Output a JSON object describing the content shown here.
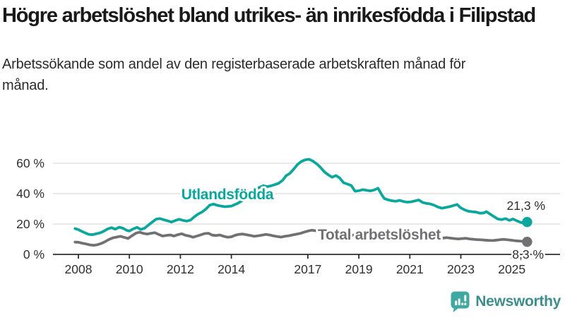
{
  "header": {
    "title": "Högre arbetslöshet bland utrikes- än inrikesfödda i Filipstad",
    "subtitle": "Arbetssökande som andel av den registerbaserade arbetskraften månad för månad."
  },
  "chart_data": {
    "type": "line",
    "title": "Högre arbetslöshet bland utrikes- än inrikesfödda i Filipstad",
    "subtitle": "Arbetssökande som andel av den registerbaserade arbetskraften månad för månad.",
    "x_unit": "year_decimal",
    "xlabel": "",
    "ylabel": "",
    "xlim": [
      2007.8,
      2025.9
    ],
    "ylim": [
      0,
      65
    ],
    "grid": "horizontal",
    "legend_position": "inline-labels-on-lines",
    "yticks": [
      {
        "value": 0,
        "label": "0 %"
      },
      {
        "value": 20,
        "label": "20 %"
      },
      {
        "value": 40,
        "label": "40 %"
      },
      {
        "value": 60,
        "label": "60 %"
      }
    ],
    "xticks": [
      2008,
      2010,
      2012,
      2014,
      2017,
      2019,
      2021,
      2023,
      2025
    ],
    "colors": {
      "teal": "#0ba79c",
      "gray": "#717174",
      "axis": "#2e2e2e",
      "axis_text": "#303030",
      "grid": "#dcdcdc",
      "value_label_text": "#2e2e2e"
    },
    "series": [
      {
        "id": "utlandsfodda",
        "name": "Utlandsfödda",
        "color": "#0ba79c",
        "end_label": "21,3 %",
        "end_value": 21.3,
        "points": [
          [
            2007.87,
            17.0
          ],
          [
            2008.0,
            16.3
          ],
          [
            2008.13,
            15.2
          ],
          [
            2008.25,
            14.3
          ],
          [
            2008.4,
            13.2
          ],
          [
            2008.55,
            13.0
          ],
          [
            2008.7,
            13.6
          ],
          [
            2008.85,
            14.2
          ],
          [
            2009.0,
            15.3
          ],
          [
            2009.15,
            16.8
          ],
          [
            2009.3,
            17.6
          ],
          [
            2009.45,
            16.6
          ],
          [
            2009.6,
            17.9
          ],
          [
            2009.75,
            17.2
          ],
          [
            2009.9,
            15.8
          ],
          [
            2010.0,
            15.4
          ],
          [
            2010.15,
            16.8
          ],
          [
            2010.3,
            17.8
          ],
          [
            2010.45,
            16.4
          ],
          [
            2010.6,
            17.3
          ],
          [
            2010.75,
            19.4
          ],
          [
            2010.9,
            21.3
          ],
          [
            2011.05,
            23.2
          ],
          [
            2011.2,
            23.6
          ],
          [
            2011.35,
            22.8
          ],
          [
            2011.5,
            22.1
          ],
          [
            2011.65,
            21.3
          ],
          [
            2011.8,
            22.3
          ],
          [
            2011.95,
            23.1
          ],
          [
            2012.1,
            22.4
          ],
          [
            2012.25,
            21.9
          ],
          [
            2012.4,
            22.6
          ],
          [
            2012.55,
            24.8
          ],
          [
            2012.7,
            26.6
          ],
          [
            2012.85,
            27.9
          ],
          [
            2013.0,
            29.8
          ],
          [
            2013.15,
            32.4
          ],
          [
            2013.3,
            33.1
          ],
          [
            2013.45,
            32.3
          ],
          [
            2013.6,
            31.8
          ],
          [
            2013.75,
            31.4
          ],
          [
            2014.0,
            31.8
          ],
          [
            2014.25,
            33.6
          ],
          [
            2014.5,
            36.2
          ],
          [
            2014.75,
            39.4
          ],
          [
            2015.0,
            43.2
          ],
          [
            2015.1,
            44.1
          ],
          [
            2015.25,
            45.2
          ],
          [
            2015.4,
            44.6
          ],
          [
            2015.55,
            45.1
          ],
          [
            2015.7,
            45.9
          ],
          [
            2015.85,
            46.8
          ],
          [
            2016.0,
            48.6
          ],
          [
            2016.15,
            51.8
          ],
          [
            2016.3,
            53.4
          ],
          [
            2016.45,
            56.2
          ],
          [
            2016.6,
            59.3
          ],
          [
            2016.75,
            61.2
          ],
          [
            2016.9,
            62.3
          ],
          [
            2017.05,
            62.6
          ],
          [
            2017.2,
            61.4
          ],
          [
            2017.35,
            59.6
          ],
          [
            2017.5,
            57.2
          ],
          [
            2017.65,
            54.3
          ],
          [
            2017.8,
            52.4
          ],
          [
            2017.95,
            50.8
          ],
          [
            2018.1,
            51.9
          ],
          [
            2018.25,
            50.3
          ],
          [
            2018.4,
            47.2
          ],
          [
            2018.55,
            46.3
          ],
          [
            2018.7,
            45.4
          ],
          [
            2018.85,
            41.6
          ],
          [
            2019.0,
            41.9
          ],
          [
            2019.15,
            42.6
          ],
          [
            2019.3,
            42.2
          ],
          [
            2019.45,
            41.8
          ],
          [
            2019.6,
            42.4
          ],
          [
            2019.75,
            43.6
          ],
          [
            2019.9,
            39.2
          ],
          [
            2020.0,
            36.8
          ],
          [
            2020.15,
            35.9
          ],
          [
            2020.3,
            35.3
          ],
          [
            2020.45,
            35.0
          ],
          [
            2020.6,
            35.6
          ],
          [
            2020.75,
            34.8
          ],
          [
            2020.9,
            34.4
          ],
          [
            2021.05,
            34.6
          ],
          [
            2021.2,
            35.2
          ],
          [
            2021.35,
            35.8
          ],
          [
            2021.5,
            34.2
          ],
          [
            2021.65,
            33.6
          ],
          [
            2021.8,
            33.2
          ],
          [
            2021.95,
            32.4
          ],
          [
            2022.1,
            31.2
          ],
          [
            2022.25,
            30.4
          ],
          [
            2022.4,
            30.9
          ],
          [
            2022.55,
            31.4
          ],
          [
            2022.7,
            32.1
          ],
          [
            2022.85,
            32.9
          ],
          [
            2023.0,
            30.6
          ],
          [
            2023.15,
            29.3
          ],
          [
            2023.3,
            28.4
          ],
          [
            2023.45,
            28.1
          ],
          [
            2023.6,
            27.8
          ],
          [
            2023.75,
            27.1
          ],
          [
            2023.9,
            27.3
          ],
          [
            2024.0,
            28.2
          ],
          [
            2024.15,
            26.5
          ],
          [
            2024.3,
            24.9
          ],
          [
            2024.45,
            23.3
          ],
          [
            2024.6,
            22.9
          ],
          [
            2024.75,
            23.6
          ],
          [
            2024.9,
            22.4
          ],
          [
            2025.05,
            23.3
          ],
          [
            2025.2,
            22.1
          ],
          [
            2025.35,
            21.0
          ],
          [
            2025.5,
            20.7
          ],
          [
            2025.6,
            21.3
          ]
        ]
      },
      {
        "id": "total",
        "name": "Total arbetslöshet",
        "color": "#717174",
        "end_label": "8,3 %",
        "end_value": 8.3,
        "points": [
          [
            2007.87,
            8.1
          ],
          [
            2008.0,
            8.0
          ],
          [
            2008.15,
            7.4
          ],
          [
            2008.3,
            6.9
          ],
          [
            2008.45,
            6.3
          ],
          [
            2008.6,
            6.0
          ],
          [
            2008.75,
            6.4
          ],
          [
            2008.9,
            7.2
          ],
          [
            2009.05,
            8.4
          ],
          [
            2009.2,
            9.8
          ],
          [
            2009.35,
            10.9
          ],
          [
            2009.5,
            11.4
          ],
          [
            2009.65,
            11.9
          ],
          [
            2009.8,
            11.2
          ],
          [
            2009.95,
            10.5
          ],
          [
            2010.1,
            12.3
          ],
          [
            2010.25,
            13.9
          ],
          [
            2010.4,
            14.6
          ],
          [
            2010.55,
            13.8
          ],
          [
            2010.7,
            13.4
          ],
          [
            2010.85,
            13.9
          ],
          [
            2011.0,
            14.3
          ],
          [
            2011.15,
            13.1
          ],
          [
            2011.3,
            12.1
          ],
          [
            2011.45,
            12.5
          ],
          [
            2011.6,
            12.8
          ],
          [
            2011.75,
            12.1
          ],
          [
            2011.9,
            13.0
          ],
          [
            2012.05,
            13.6
          ],
          [
            2012.2,
            12.6
          ],
          [
            2012.35,
            12.1
          ],
          [
            2012.5,
            11.3
          ],
          [
            2012.65,
            12.1
          ],
          [
            2012.8,
            12.9
          ],
          [
            2012.95,
            13.7
          ],
          [
            2013.1,
            13.9
          ],
          [
            2013.25,
            12.7
          ],
          [
            2013.4,
            12.4
          ],
          [
            2013.55,
            12.8
          ],
          [
            2013.7,
            11.9
          ],
          [
            2013.85,
            11.3
          ],
          [
            2014.0,
            11.6
          ],
          [
            2014.15,
            12.6
          ],
          [
            2014.3,
            13.2
          ],
          [
            2014.45,
            13.4
          ],
          [
            2014.6,
            12.9
          ],
          [
            2014.75,
            12.4
          ],
          [
            2014.9,
            11.9
          ],
          [
            2015.05,
            12.3
          ],
          [
            2015.2,
            12.7
          ],
          [
            2015.35,
            13.1
          ],
          [
            2015.5,
            12.8
          ],
          [
            2015.65,
            12.2
          ],
          [
            2015.8,
            11.7
          ],
          [
            2015.95,
            11.4
          ],
          [
            2016.1,
            11.9
          ],
          [
            2016.25,
            12.3
          ],
          [
            2016.4,
            12.8
          ],
          [
            2016.55,
            13.3
          ],
          [
            2016.7,
            13.8
          ],
          [
            2016.85,
            14.6
          ],
          [
            2017.0,
            15.4
          ],
          [
            2017.15,
            15.9
          ],
          [
            2017.3,
            15.6
          ],
          [
            2017.5,
            15.0
          ],
          [
            2017.75,
            14.4
          ],
          [
            2018.0,
            13.9
          ],
          [
            2018.25,
            13.4
          ],
          [
            2018.5,
            13.0
          ],
          [
            2018.75,
            12.7
          ],
          [
            2019.0,
            12.4
          ],
          [
            2019.25,
            12.1
          ],
          [
            2019.5,
            11.9
          ],
          [
            2019.75,
            11.8
          ],
          [
            2020.0,
            12.0
          ],
          [
            2020.25,
            12.9
          ],
          [
            2020.5,
            12.5
          ],
          [
            2020.75,
            12.1
          ],
          [
            2021.0,
            11.8
          ],
          [
            2021.25,
            11.6
          ],
          [
            2021.5,
            11.4
          ],
          [
            2021.75,
            11.1
          ],
          [
            2022.0,
            10.9
          ],
          [
            2022.15,
            10.7
          ],
          [
            2022.3,
            10.8
          ],
          [
            2022.45,
            11.0
          ],
          [
            2022.6,
            10.7
          ],
          [
            2022.75,
            10.4
          ],
          [
            2022.9,
            10.2
          ],
          [
            2023.05,
            10.4
          ],
          [
            2023.2,
            10.6
          ],
          [
            2023.35,
            10.2
          ],
          [
            2023.5,
            9.9
          ],
          [
            2023.65,
            9.7
          ],
          [
            2023.8,
            9.6
          ],
          [
            2023.95,
            9.4
          ],
          [
            2024.1,
            9.2
          ],
          [
            2024.25,
            9.1
          ],
          [
            2024.4,
            9.4
          ],
          [
            2024.55,
            9.7
          ],
          [
            2024.7,
            9.9
          ],
          [
            2024.85,
            9.6
          ],
          [
            2025.0,
            9.3
          ],
          [
            2025.15,
            9.0
          ],
          [
            2025.3,
            8.8
          ],
          [
            2025.45,
            8.6
          ],
          [
            2025.6,
            8.3
          ]
        ]
      }
    ]
  },
  "logo": {
    "label": "Newsworthy",
    "icon": "bar-chart-speech-bubble-icon",
    "icon_color": "#3fa8a1",
    "text_color": "#3e8e8e"
  }
}
